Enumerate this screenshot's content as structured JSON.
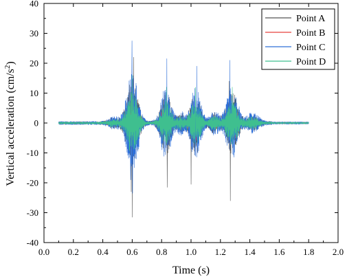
{
  "chart_data": {
    "type": "line",
    "xlabel": "Time (s)",
    "ylabel_main": "Vertical acceleration (cm/s",
    "ylabel_sup": "2",
    "ylabel_end": ")",
    "xlim": [
      0.0,
      2.0
    ],
    "ylim": [
      -40,
      40
    ],
    "x_ticks": [
      "0.0",
      "0.2",
      "0.4",
      "0.6",
      "0.8",
      "1.0",
      "1.2",
      "1.4",
      "1.6",
      "1.8",
      "2.0"
    ],
    "y_ticks": [
      "40",
      "30",
      "20",
      "10",
      "0",
      "-10",
      "-20",
      "-30",
      "-40"
    ],
    "grid": false,
    "legend_position": "top-right",
    "x_start": 0.1,
    "x_end": 1.8,
    "envelope_peaks": [
      {
        "t": 0.6,
        "amp": 17,
        "width": 0.05
      },
      {
        "t": 0.83,
        "amp": 12,
        "width": 0.045
      },
      {
        "t": 1.03,
        "amp": 12,
        "width": 0.045
      },
      {
        "t": 1.28,
        "amp": 12,
        "width": 0.05
      }
    ],
    "series": [
      {
        "name": "Point A",
        "color": "#555555",
        "scale": 0.85,
        "spikes": [
          [
            0.6,
            -31.5
          ],
          [
            0.593,
            -23
          ],
          [
            0.838,
            -21.5
          ],
          [
            1.0,
            -20.5
          ],
          [
            1.268,
            -26
          ],
          [
            0.61,
            22
          ],
          [
            1.26,
            14
          ]
        ]
      },
      {
        "name": "Point B",
        "color": "#e8413c",
        "scale": 0.5,
        "spikes": [
          [
            0.6,
            -16
          ],
          [
            0.6,
            14
          ]
        ]
      },
      {
        "name": "Point C",
        "color": "#2e6fd8",
        "scale": 1.0,
        "spikes": [
          [
            0.598,
            27.5
          ],
          [
            0.602,
            -23.5
          ],
          [
            0.835,
            21.5
          ],
          [
            1.04,
            19
          ],
          [
            1.265,
            21
          ],
          [
            0.59,
            -19
          ]
        ]
      },
      {
        "name": "Point D",
        "color": "#3fbf8f",
        "scale": 0.6,
        "spikes": [
          [
            0.6,
            -19
          ],
          [
            0.6,
            16
          ],
          [
            0.833,
            12
          ],
          [
            1.03,
            12
          ],
          [
            1.28,
            12
          ]
        ]
      }
    ]
  }
}
